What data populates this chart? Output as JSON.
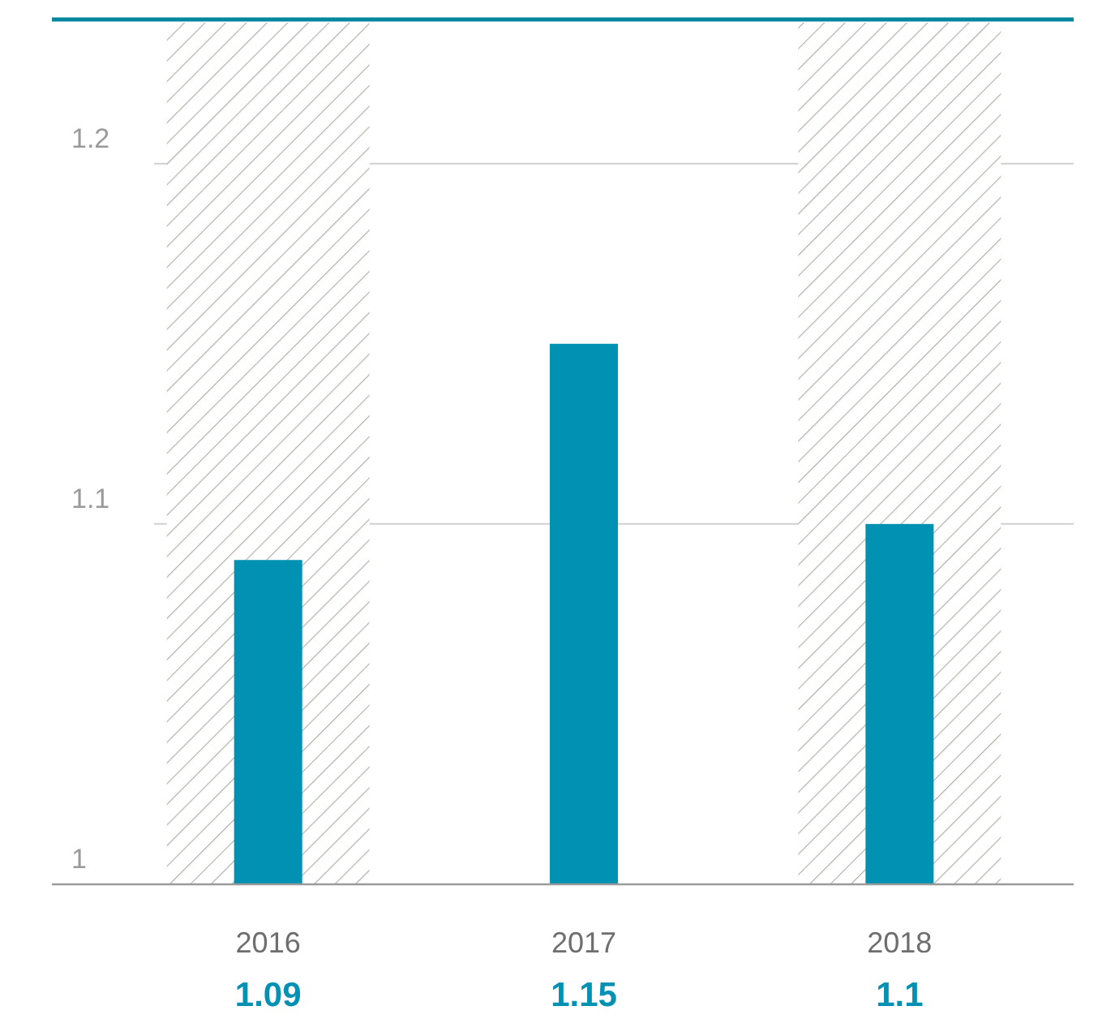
{
  "chart_data": {
    "type": "bar",
    "categories": [
      "2016",
      "2017",
      "2018"
    ],
    "values": [
      1.09,
      1.15,
      1.1
    ],
    "color": "#0091b3",
    "ylim": [
      1,
      1.24
    ],
    "yticks": [
      1,
      1.1,
      1.2
    ],
    "grid": "y",
    "data_labels": true,
    "bands": [
      {
        "axis": "x",
        "from": "2016",
        "to": "2016",
        "color": "#b5b0aa"
      },
      {
        "axis": "x",
        "from": "2018",
        "to": "2018",
        "color": "#b5b0aa"
      }
    ]
  }
}
